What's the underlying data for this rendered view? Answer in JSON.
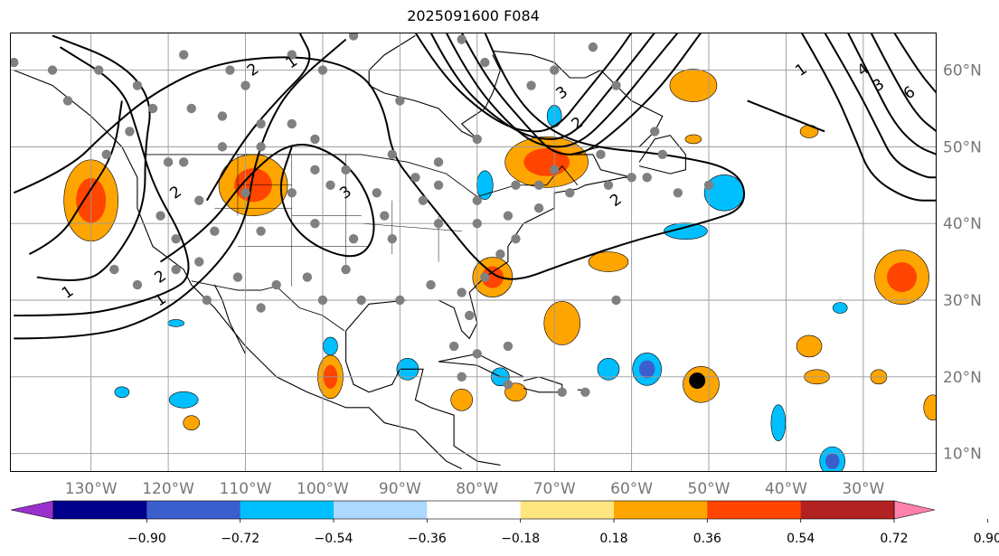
{
  "title": "2025091600 F084",
  "lat_labels": [
    "60°N",
    "50°N",
    "40°N",
    "30°N",
    "20°N",
    "10°N"
  ],
  "lon_labels": [
    "130°W",
    "120°W",
    "110°W",
    "100°W",
    "90°W",
    "80°W",
    "70°W",
    "60°W",
    "50°W",
    "40°W",
    "30°W"
  ],
  "colorbar": {
    "ticks": [
      "−0.90",
      "−0.72",
      "−0.54",
      "−0.36",
      "−0.18",
      "0.18",
      "0.36",
      "0.54",
      "0.72",
      "0.90"
    ],
    "colors": [
      "#9932CC",
      "#00008B",
      "#3A5FCD",
      "#00BFFF",
      "#ADD8FF",
      "#FFFFFF",
      "#FFE680",
      "#FFA500",
      "#FF4500",
      "#B22222",
      "#FF82AB"
    ]
  },
  "contour_labels": [
    {
      "text": "1",
      "lon": -133,
      "lat": 31
    },
    {
      "text": "2",
      "lon": -121,
      "lat": 33
    },
    {
      "text": "1",
      "lon": -121,
      "lat": 30
    },
    {
      "text": "2",
      "lon": -119,
      "lat": 44
    },
    {
      "text": "3",
      "lon": -97,
      "lat": 44
    },
    {
      "text": "2",
      "lon": -109,
      "lat": 60
    },
    {
      "text": "1",
      "lon": -104,
      "lat": 61
    },
    {
      "text": "3",
      "lon": -69,
      "lat": 57
    },
    {
      "text": "2",
      "lon": -67,
      "lat": 53
    },
    {
      "text": "2",
      "lon": -62,
      "lat": 43
    },
    {
      "text": "1",
      "lon": -38,
      "lat": 60
    },
    {
      "text": "4",
      "lon": -30,
      "lat": 60
    },
    {
      "text": "3",
      "lon": -28,
      "lat": 58
    },
    {
      "text": "6",
      "lon": -24,
      "lat": 57
    }
  ]
}
